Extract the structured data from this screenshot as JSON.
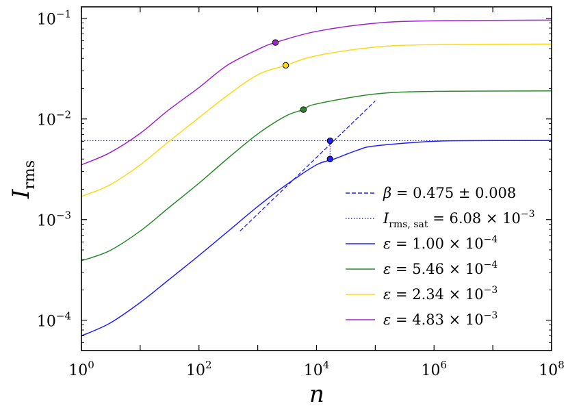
{
  "chart_data": {
    "type": "line",
    "title": "",
    "x_scale": "log",
    "y_scale": "log",
    "xlim": [
      1,
      100000000
    ],
    "ylim": [
      5e-05,
      0.13
    ],
    "xlabel": {
      "base": "I",
      "sub": "rms",
      "text": "n"
    },
    "x_ticks": [
      {
        "value": 1,
        "base": "10",
        "exp": "0"
      },
      {
        "value": 100,
        "base": "10",
        "exp": "2"
      },
      {
        "value": 10000,
        "base": "10",
        "exp": "4"
      },
      {
        "value": 1000000,
        "base": "10",
        "exp": "6"
      },
      {
        "value": 100000000,
        "base": "10",
        "exp": "8"
      }
    ],
    "y_ticks": [
      {
        "value": 0.0001,
        "base": "10",
        "exp": "−4"
      },
      {
        "value": 0.001,
        "base": "10",
        "exp": "−3"
      },
      {
        "value": 0.01,
        "base": "10",
        "exp": "−2"
      },
      {
        "value": 0.1,
        "base": "10",
        "exp": "−1"
      }
    ],
    "ylabel": {
      "base": "I",
      "sub": "rms"
    },
    "legend_position": "lower-right",
    "series": [
      {
        "name": "ε = 1.00×10⁻⁴",
        "legend": {
          "sym": "ε",
          "text": " = 1.00 × 10",
          "exp": "−4"
        },
        "color": "#1f1fff",
        "style": "solid",
        "points": [
          [
            1,
            7e-05
          ],
          [
            3,
            9.3e-05
          ],
          [
            10,
            0.00015
          ],
          [
            30,
            0.00025
          ],
          [
            100,
            0.00044
          ],
          [
            300,
            0.00075
          ],
          [
            1000,
            0.00135
          ],
          [
            3000,
            0.0022
          ],
          [
            10000,
            0.0035
          ],
          [
            20000,
            0.004
          ],
          [
            50000,
            0.0049
          ],
          [
            100000,
            0.0054
          ],
          [
            1000000,
            0.006
          ],
          [
            10000000,
            0.0061
          ],
          [
            100000000,
            0.0061
          ]
        ],
        "marker": [
          17000,
          0.004
        ]
      },
      {
        "name": "ε = 5.46×10⁻⁴",
        "legend": {
          "sym": "ε",
          "text": " = 5.46 × 10",
          "exp": "−4"
        },
        "color": "#2a8a2a",
        "style": "solid",
        "points": [
          [
            1,
            0.00039
          ],
          [
            3,
            0.00049
          ],
          [
            10,
            0.00077
          ],
          [
            30,
            0.0013
          ],
          [
            100,
            0.0023
          ],
          [
            300,
            0.004
          ],
          [
            1000,
            0.0071
          ],
          [
            3000,
            0.0107
          ],
          [
            6000,
            0.0124
          ],
          [
            10000,
            0.0141
          ],
          [
            100000,
            0.0177
          ],
          [
            1000000,
            0.0188
          ],
          [
            100000000,
            0.019
          ]
        ],
        "marker": [
          6000,
          0.0124
        ]
      },
      {
        "name": "ε = 2.34×10⁻³",
        "legend": {
          "sym": "ε",
          "text": " = 2.34 × 10",
          "exp": "−3"
        },
        "color": "#ffd81a",
        "style": "solid",
        "points": [
          [
            1,
            0.0017
          ],
          [
            3,
            0.0022
          ],
          [
            10,
            0.0035
          ],
          [
            30,
            0.0059
          ],
          [
            100,
            0.0103
          ],
          [
            300,
            0.017
          ],
          [
            1000,
            0.0275
          ],
          [
            3000,
            0.0341
          ],
          [
            10000,
            0.0425
          ],
          [
            100000,
            0.0518
          ],
          [
            1000000,
            0.0547
          ],
          [
            100000000,
            0.0555
          ]
        ],
        "marker": [
          3000,
          0.0341
        ]
      },
      {
        "name": "ε = 4.83×10⁻³",
        "legend": {
          "sym": "ε",
          "text": " = 4.83 × 10",
          "exp": "−3"
        },
        "color": "#a020d0",
        "style": "solid",
        "points": [
          [
            1,
            0.0035
          ],
          [
            3,
            0.0046
          ],
          [
            10,
            0.0072
          ],
          [
            30,
            0.0122
          ],
          [
            100,
            0.0205
          ],
          [
            300,
            0.034
          ],
          [
            1000,
            0.049
          ],
          [
            2000,
            0.0575
          ],
          [
            10000,
            0.0742
          ],
          [
            100000,
            0.0895
          ],
          [
            1000000,
            0.0945
          ],
          [
            100000000,
            0.096
          ]
        ],
        "marker": [
          2000,
          0.0575
        ]
      }
    ],
    "fit_line": {
      "name": "β = 0.475 ± 0.008",
      "legend": {
        "sym": "β",
        "text": " = 0.475 ± 0.008"
      },
      "color": "#1f1fff",
      "style": "dashed",
      "points": [
        [
          500,
          0.00077
        ],
        [
          100000,
          0.0151
        ]
      ],
      "marker": [
        17000,
        0.00608
      ]
    },
    "saturation_line": {
      "name": "I_rms,sat = 6.08×10⁻³",
      "legend": {
        "sym": "I",
        "sub": "rms, sat",
        "text": " = 6.08 × 10",
        "exp": "−3"
      },
      "color": "#1f1fff",
      "style": "dotted",
      "y": 0.00608
    },
    "legend_order": [
      "fit_line",
      "saturation_line",
      "series0",
      "series1",
      "series2",
      "series3"
    ]
  }
}
